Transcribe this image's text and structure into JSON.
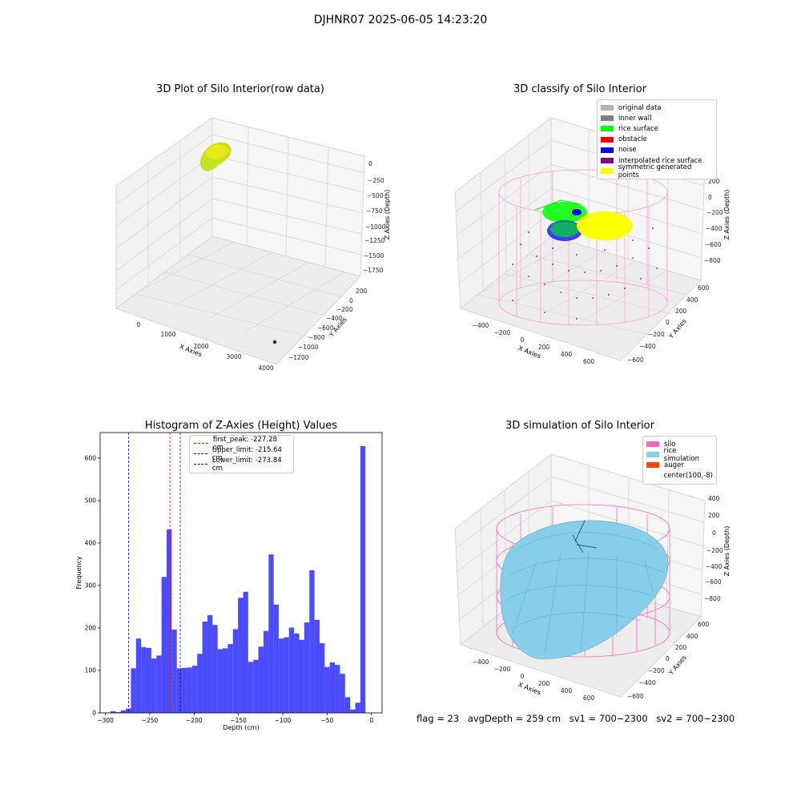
{
  "suptitle": "DJHNR07 2025-06-05 14:23:20",
  "panels": {
    "raw": {
      "title": "3D Plot of Silo Interior(row data)",
      "xlabel": "X Axies",
      "ylabel": "Y Axies",
      "zlabel": "Z Axies (Depth)",
      "xticks": [
        "0",
        "1000",
        "2000",
        "3000",
        "4000"
      ],
      "yticks": [
        "200",
        "0",
        "−200",
        "−400",
        "−600",
        "−800",
        "−1000",
        "−1200"
      ],
      "zticks": [
        "0",
        "−250",
        "−500",
        "−750",
        "−1000",
        "−1250",
        "−1500",
        "−1750"
      ]
    },
    "classify": {
      "title": "3D classify of Silo Interior",
      "xlabel": "X Axies",
      "ylabel": "Y Axies",
      "zlabel": "Z Axies (Depth)",
      "xticks": [
        "−400",
        "−200",
        "0",
        "200",
        "400",
        "600"
      ],
      "yticks": [
        "600",
        "400",
        "200",
        "0",
        "−200",
        "−400",
        "−600"
      ],
      "zticks": [
        "200",
        "0",
        "−200",
        "−400",
        "−600",
        "−800"
      ],
      "legend": [
        {
          "label": "original data",
          "color": "#b3b3b3"
        },
        {
          "label": "inner wall",
          "color": "#808080"
        },
        {
          "label": "rice surface",
          "color": "#00ff00"
        },
        {
          "label": "obstacle",
          "color": "#ff0000"
        },
        {
          "label": "noise",
          "color": "#0000ff"
        },
        {
          "label": "interpolated rice surface",
          "color": "#800080"
        },
        {
          "label": "symmetric generated points",
          "color": "#ffff00"
        }
      ]
    },
    "simulation": {
      "title": "3D simulation of Silo Interior",
      "xlabel": "X Axies",
      "ylabel": "Y Axies",
      "zlabel": "Z Axies (Depth)",
      "xticks": [
        "−400",
        "−200",
        "0",
        "200",
        "400",
        "600"
      ],
      "yticks": [
        "600",
        "400",
        "200",
        "0",
        "−200",
        "−400",
        "−600"
      ],
      "zticks": [
        "400",
        "200",
        "0",
        "−200",
        "−400",
        "−600",
        "−800"
      ],
      "legend": [
        {
          "label": "silo",
          "color": "#ff69b4"
        },
        {
          "label": "rice simulation",
          "color": "#87ceeb"
        },
        {
          "label": "auger",
          "color": "#ff4500"
        },
        {
          "label": "center(100,-8)",
          "color": "#ffffff"
        }
      ]
    }
  },
  "chart_data": {
    "type": "bar",
    "title": "Histogram of Z-Axies (Height) Values",
    "xlabel": "Depth (cm)",
    "ylabel": "Frequency",
    "xlim": [
      -306,
      12
    ],
    "ylim": [
      0,
      660
    ],
    "xticks": [
      -300,
      -250,
      -200,
      -150,
      -100,
      -50,
      0
    ],
    "xtick_labels": [
      "−300",
      "−250",
      "−200",
      "−150",
      "−100",
      "−50",
      "0"
    ],
    "yticks": [
      0,
      100,
      200,
      300,
      400,
      500,
      600
    ],
    "bar_color": "#0000ff",
    "bin_edges_start": -300,
    "bin_width": 5.75,
    "values": [
      1,
      4,
      2,
      6,
      10,
      105,
      175,
      155,
      153,
      128,
      135,
      320,
      432,
      196,
      105,
      106,
      107,
      111,
      139,
      215,
      230,
      207,
      150,
      152,
      162,
      197,
      271,
      285,
      120,
      125,
      156,
      193,
      373,
      255,
      175,
      178,
      201,
      187,
      172,
      213,
      336,
      219,
      164,
      108,
      119,
      113,
      92,
      37,
      8,
      24,
      628
    ],
    "vlines": [
      {
        "label": "first_peak: -227.28 cm",
        "x": -227.28,
        "color": "#ff0000"
      },
      {
        "label": "Upper_limit: -215.64 cm",
        "x": -215.64,
        "color": "#0000ff"
      },
      {
        "label": "Lower_limit: -273.84 cm",
        "x": -273.84,
        "color": "#0000ff"
      }
    ],
    "legend_position": "upper center"
  },
  "footer": {
    "flag": "flag = 23",
    "avgdepth": "avgDepth = 259 cm",
    "sv1": "sv1 = 700~2300",
    "sv2": "sv2 = 700~2300"
  }
}
